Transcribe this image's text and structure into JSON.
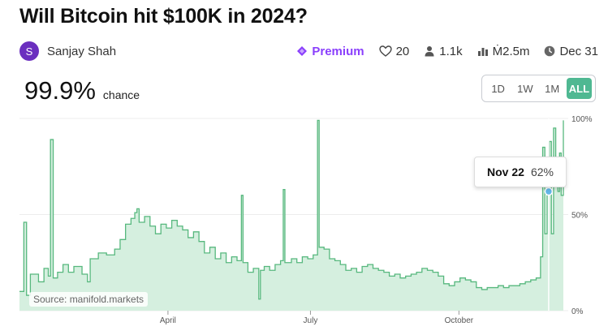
{
  "market": {
    "title": "Will Bitcoin hit $100K in 2024?",
    "author_initial": "S",
    "author_name": "Sanjay Shah",
    "premium_label": "Premium",
    "likes": "20",
    "traders": "1.1k",
    "volume": "Ṁ2.5m",
    "close_date": "Dec 31",
    "probability": "99.9%",
    "probability_label": "chance"
  },
  "range_buttons": [
    "1D",
    "1W",
    "1M",
    "ALL"
  ],
  "range_active": "ALL",
  "tooltip": {
    "date": "Nov 22",
    "value": "62%"
  },
  "source": "Source: manifold.markets",
  "colors": {
    "accent": "#4fb892",
    "line": "#57b87e",
    "fill": "#d5efdf",
    "premium": "#8a3ffc",
    "avatar": "#6b2fbf"
  },
  "chart_data": {
    "type": "area",
    "x_tick_labels": [
      "April",
      "July",
      "October"
    ],
    "y_tick_labels": [
      "100%",
      "50%",
      "0%"
    ],
    "ylim": [
      0,
      100
    ],
    "points": [
      [
        0,
        10
      ],
      [
        0.8,
        46
      ],
      [
        1.3,
        8
      ],
      [
        2,
        19
      ],
      [
        3.5,
        15
      ],
      [
        4.5,
        22
      ],
      [
        5.3,
        18
      ],
      [
        5.7,
        89
      ],
      [
        6.2,
        17
      ],
      [
        7,
        20
      ],
      [
        8,
        24
      ],
      [
        9,
        20
      ],
      [
        10,
        23
      ],
      [
        11.5,
        19
      ],
      [
        12.5,
        15
      ],
      [
        13,
        27
      ],
      [
        14.5,
        30
      ],
      [
        16,
        29
      ],
      [
        17.5,
        32
      ],
      [
        18.5,
        37
      ],
      [
        19.5,
        45
      ],
      [
        20.5,
        48
      ],
      [
        21.2,
        51
      ],
      [
        21.6,
        53
      ],
      [
        22,
        46
      ],
      [
        23,
        49
      ],
      [
        24,
        44
      ],
      [
        25,
        40
      ],
      [
        26,
        45
      ],
      [
        27,
        43
      ],
      [
        28,
        47
      ],
      [
        29,
        44
      ],
      [
        30,
        42
      ],
      [
        31,
        38
      ],
      [
        32,
        41
      ],
      [
        33,
        36
      ],
      [
        34,
        30
      ],
      [
        35,
        33
      ],
      [
        36,
        27
      ],
      [
        37,
        30
      ],
      [
        38,
        25
      ],
      [
        39,
        28
      ],
      [
        40,
        26
      ],
      [
        40.8,
        60
      ],
      [
        41.1,
        25
      ],
      [
        42,
        20
      ],
      [
        43,
        22
      ],
      [
        44,
        6
      ],
      [
        44.3,
        21
      ],
      [
        45,
        23
      ],
      [
        46,
        21
      ],
      [
        47,
        24
      ],
      [
        48,
        26
      ],
      [
        48.5,
        63
      ],
      [
        48.8,
        25
      ],
      [
        50,
        27
      ],
      [
        51,
        25
      ],
      [
        52,
        28
      ],
      [
        53,
        27
      ],
      [
        54,
        29
      ],
      [
        54.8,
        99
      ],
      [
        55.1,
        33
      ],
      [
        56,
        32
      ],
      [
        57,
        27
      ],
      [
        58,
        26
      ],
      [
        59,
        24
      ],
      [
        60,
        21
      ],
      [
        61,
        22
      ],
      [
        62,
        20
      ],
      [
        63,
        23
      ],
      [
        64,
        24
      ],
      [
        65,
        22
      ],
      [
        66,
        21
      ],
      [
        67,
        20
      ],
      [
        68,
        18
      ],
      [
        69,
        19
      ],
      [
        70,
        17
      ],
      [
        71,
        18
      ],
      [
        72,
        19
      ],
      [
        73,
        20
      ],
      [
        74,
        22
      ],
      [
        75,
        21
      ],
      [
        76,
        20
      ],
      [
        77,
        18
      ],
      [
        78,
        14
      ],
      [
        79,
        13
      ],
      [
        80,
        15
      ],
      [
        81,
        17
      ],
      [
        82,
        16
      ],
      [
        83,
        15
      ],
      [
        84,
        12
      ],
      [
        85,
        11
      ],
      [
        86,
        12
      ],
      [
        87,
        12
      ],
      [
        88,
        13
      ],
      [
        89,
        12
      ],
      [
        90,
        13
      ],
      [
        91,
        13
      ],
      [
        92,
        14
      ],
      [
        93,
        15
      ],
      [
        94,
        16
      ],
      [
        95,
        17
      ],
      [
        95.8,
        28
      ],
      [
        96.2,
        85
      ],
      [
        96.6,
        40
      ],
      [
        97,
        76
      ],
      [
        97.4,
        88
      ],
      [
        97.8,
        40
      ],
      [
        98.2,
        95
      ],
      [
        98.6,
        70
      ],
      [
        99,
        62
      ],
      [
        99.3,
        82
      ],
      [
        99.6,
        60
      ],
      [
        100,
        99
      ]
    ]
  }
}
